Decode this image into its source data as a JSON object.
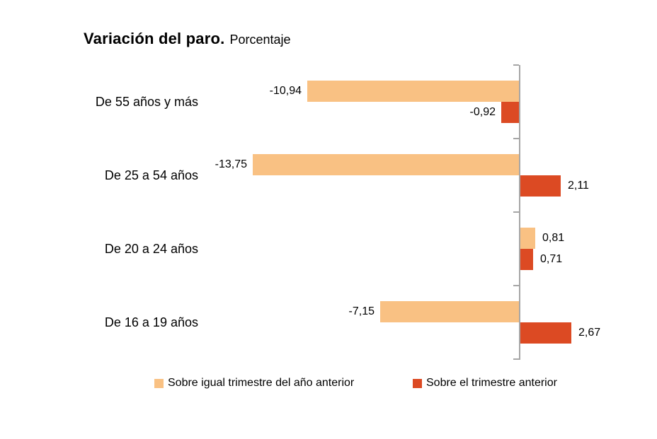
{
  "page": {
    "background": "#ffffff"
  },
  "title": {
    "main": "Variación del paro.",
    "subtitle": "Porcentaje"
  },
  "chart_data": {
    "type": "bar",
    "orientation": "horizontal",
    "title": "Variación del paro. Porcentaje",
    "categories": [
      "De 55 años y más",
      "De 25 a 54 años",
      "De 20 a 24 años",
      "De 16 a 19 años"
    ],
    "series": [
      {
        "name": "Sobre igual trimestre del año anterior",
        "color": "#F9C183",
        "values": [
          -10.94,
          -13.75,
          0.81,
          -7.15
        ],
        "value_labels": [
          "-10,94",
          "-13,75",
          "0,81",
          "-7,15"
        ]
      },
      {
        "name": "Sobre el trimestre anterior",
        "color": "#DC4A23",
        "values": [
          -0.92,
          2.11,
          0.71,
          2.67
        ],
        "value_labels": [
          "-0,92",
          "2,11",
          "0,71",
          "2,67"
        ]
      }
    ],
    "value_axis": {
      "labels_visible": false,
      "xlim_estimate": [
        -15,
        3
      ]
    },
    "category_axis": {
      "line_color": "#A6A6A6",
      "ticks_visible": true
    },
    "grid": false,
    "data_labels_visible": true,
    "legend_position": "bottom"
  }
}
